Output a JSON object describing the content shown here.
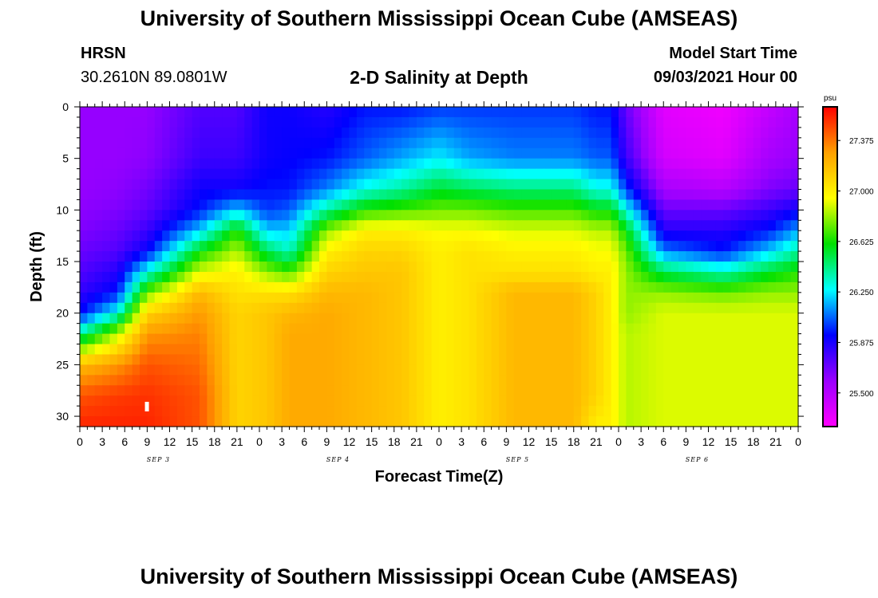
{
  "header": {
    "title": "University of Southern Mississippi Ocean Cube (AMSEAS)",
    "station_name": "HRSN",
    "coordinates": "30.2610N  89.0801W",
    "subtitle": "2-D Salinity at Depth",
    "start_label": "Model Start Time",
    "start_value": "09/03/2021 Hour 00"
  },
  "footer": {
    "title": "University of Southern Mississippi Ocean Cube (AMSEAS)"
  },
  "chart_data": {
    "type": "heatmap",
    "title": "2-D Salinity at Depth",
    "xlabel": "Forecast Time(Z)",
    "ylabel": "Depth (ft)",
    "x_range_hours": [
      0,
      96
    ],
    "ylim": [
      0,
      31
    ],
    "y_inverted": true,
    "x_ticks": [
      "0",
      "3",
      "6",
      "9",
      "12",
      "15",
      "18",
      "21",
      "0",
      "3",
      "6",
      "9",
      "12",
      "15",
      "18",
      "21",
      "0",
      "3",
      "6",
      "9",
      "12",
      "15",
      "18",
      "21",
      "0",
      "3",
      "6",
      "9",
      "12",
      "15",
      "18",
      "21",
      "0"
    ],
    "y_ticks": [
      "0",
      "5",
      "10",
      "15",
      "20",
      "25",
      "30"
    ],
    "y_tick_values": [
      0,
      5,
      10,
      15,
      20,
      25,
      30
    ],
    "dates": [
      {
        "label": "SEP 3",
        "hour": 10.5
      },
      {
        "label": "SEP 4",
        "hour": 34.5
      },
      {
        "label": "SEP 5",
        "hour": 58.5
      },
      {
        "label": "SEP 6",
        "hour": 82.5
      }
    ],
    "colorbar": {
      "unit": "psu",
      "min": 25.25,
      "max": 27.625,
      "tick_labels": [
        "27.375",
        "27.000",
        "26.625",
        "26.250",
        "25.875",
        "25.500"
      ],
      "tick_values": [
        27.375,
        27.0,
        26.625,
        26.25,
        25.875,
        25.5
      ],
      "colors": [
        "#ff00ff",
        "#9b00ff",
        "#0000ff",
        "#00ffff",
        "#00e000",
        "#ffff00",
        "#ffa000",
        "#ff0000"
      ]
    },
    "salinity_profiles": {
      "depths_ft": [
        0,
        5,
        8,
        10,
        12,
        14,
        16,
        18,
        20,
        22,
        25,
        28,
        31
      ],
      "profiles": [
        {
          "hour": 0,
          "values": [
            25.6,
            25.6,
            25.6,
            25.62,
            25.65,
            25.7,
            25.75,
            25.82,
            25.92,
            26.4,
            27.2,
            27.45,
            27.55
          ]
        },
        {
          "hour": 5,
          "values": [
            25.6,
            25.6,
            25.62,
            25.65,
            25.7,
            25.75,
            25.85,
            25.95,
            26.3,
            26.85,
            27.3,
            27.5,
            27.55
          ]
        },
        {
          "hour": 9,
          "values": [
            25.6,
            25.62,
            25.68,
            25.72,
            25.8,
            25.92,
            26.3,
            26.75,
            27.1,
            27.3,
            27.45,
            27.52,
            27.55
          ]
        },
        {
          "hour": 16,
          "values": [
            25.75,
            25.8,
            25.9,
            25.95,
            26.2,
            26.6,
            26.9,
            27.2,
            27.3,
            27.35,
            27.4,
            27.45,
            27.45
          ]
        },
        {
          "hour": 21,
          "values": [
            25.75,
            25.8,
            25.9,
            26.2,
            26.65,
            26.85,
            27.0,
            27.05,
            27.1,
            27.1,
            27.1,
            27.1,
            27.1
          ]
        },
        {
          "hour": 25,
          "values": [
            25.9,
            25.9,
            25.95,
            26.0,
            26.2,
            26.5,
            26.8,
            27.05,
            27.15,
            27.15,
            27.15,
            27.15,
            27.15
          ]
        },
        {
          "hour": 28,
          "values": [
            25.9,
            25.92,
            25.95,
            26.05,
            26.2,
            26.35,
            26.7,
            27.05,
            27.2,
            27.25,
            27.25,
            27.25,
            27.25
          ]
        },
        {
          "hour": 33,
          "values": [
            25.85,
            25.95,
            26.1,
            26.4,
            26.8,
            27.0,
            27.1,
            27.2,
            27.25,
            27.25,
            27.25,
            27.25,
            27.25
          ]
        },
        {
          "hour": 38,
          "values": [
            25.95,
            26.05,
            26.3,
            26.65,
            27.0,
            27.1,
            27.15,
            27.2,
            27.2,
            27.2,
            27.2,
            27.2,
            27.2
          ]
        },
        {
          "hour": 43,
          "values": [
            25.95,
            26.15,
            26.4,
            26.7,
            27.0,
            27.1,
            27.15,
            27.15,
            27.15,
            27.15,
            27.15,
            27.15,
            27.15
          ]
        },
        {
          "hour": 48,
          "values": [
            26.0,
            26.25,
            26.55,
            26.75,
            26.95,
            27.0,
            27.0,
            27.0,
            27.0,
            27.0,
            27.0,
            27.0,
            27.0
          ]
        },
        {
          "hour": 52,
          "values": [
            26.0,
            26.15,
            26.5,
            26.75,
            26.95,
            27.05,
            27.05,
            27.05,
            27.05,
            27.05,
            27.05,
            27.05,
            27.05
          ]
        },
        {
          "hour": 58,
          "values": [
            26.0,
            26.1,
            26.45,
            26.7,
            26.9,
            27.0,
            27.05,
            27.2,
            27.2,
            27.2,
            27.2,
            27.2,
            27.2
          ]
        },
        {
          "hour": 66,
          "values": [
            26.0,
            26.1,
            26.45,
            26.7,
            26.9,
            27.0,
            27.05,
            27.2,
            27.2,
            27.2,
            27.2,
            27.2,
            27.2
          ]
        },
        {
          "hour": 69,
          "values": [
            25.95,
            26.05,
            26.3,
            26.6,
            26.85,
            26.95,
            27.0,
            27.1,
            27.1,
            27.1,
            27.1,
            27.1,
            27.0
          ]
        },
        {
          "hour": 71,
          "values": [
            25.95,
            26.05,
            26.3,
            26.6,
            26.85,
            26.95,
            27.0,
            27.0,
            27.0,
            27.0,
            27.0,
            27.0,
            27.0
          ]
        },
        {
          "hour": 73,
          "values": [
            25.7,
            25.8,
            26.0,
            26.3,
            26.6,
            26.75,
            26.8,
            26.8,
            26.8,
            26.85,
            26.85,
            26.85,
            26.85
          ]
        },
        {
          "hour": 78,
          "values": [
            25.35,
            25.4,
            25.55,
            25.7,
            25.85,
            26.1,
            26.5,
            26.8,
            26.9,
            26.9,
            26.9,
            26.9,
            26.9
          ]
        },
        {
          "hour": 86,
          "values": [
            25.3,
            25.35,
            25.5,
            25.7,
            25.85,
            25.95,
            26.35,
            26.75,
            26.9,
            26.9,
            26.9,
            26.9,
            26.9
          ]
        },
        {
          "hour": 92,
          "values": [
            25.45,
            25.55,
            25.65,
            25.8,
            25.95,
            26.2,
            26.55,
            26.8,
            26.9,
            26.9,
            26.9,
            26.9,
            26.9
          ]
        },
        {
          "hour": 96,
          "values": [
            25.55,
            25.6,
            25.7,
            25.9,
            26.15,
            26.4,
            26.65,
            26.8,
            26.9,
            26.9,
            26.9,
            26.9,
            26.9
          ]
        }
      ]
    }
  }
}
